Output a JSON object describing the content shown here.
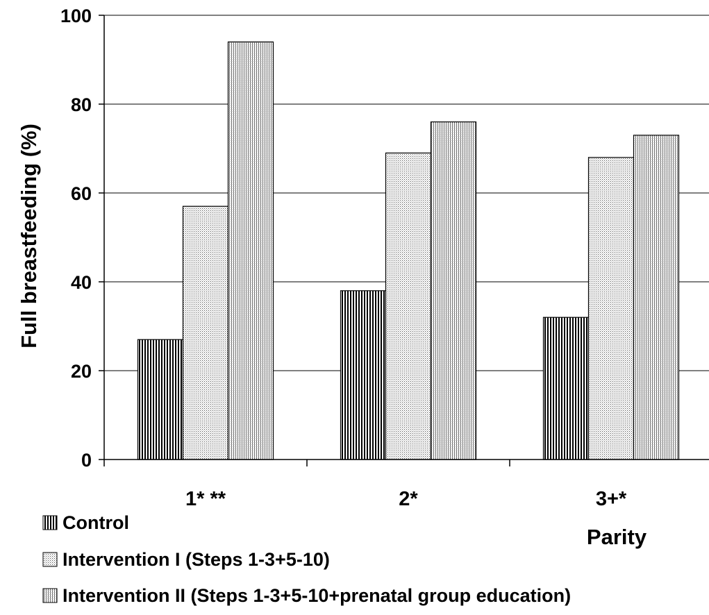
{
  "chart_data": {
    "type": "bar",
    "categories": [
      "1* **",
      "2*",
      "3+*"
    ],
    "series": [
      {
        "name": "Control",
        "values": [
          27,
          38,
          32
        ],
        "pattern": "vertical-dark"
      },
      {
        "name": "Intervention I (Steps 1-3+5-10)",
        "values": [
          57,
          69,
          68
        ],
        "pattern": "dots-light"
      },
      {
        "name": "Intervention II (Steps 1-3+5-10+prenatal group education)",
        "values": [
          94,
          76,
          73
        ],
        "pattern": "vertical-light"
      }
    ],
    "xlabel": "Parity",
    "ylabel": "Full breastfeeding (%)",
    "ylim": [
      0,
      100
    ],
    "yticks": [
      "0",
      "20",
      "40",
      "60",
      "80",
      "100"
    ],
    "grid": true,
    "legend_position": "bottom-left"
  }
}
